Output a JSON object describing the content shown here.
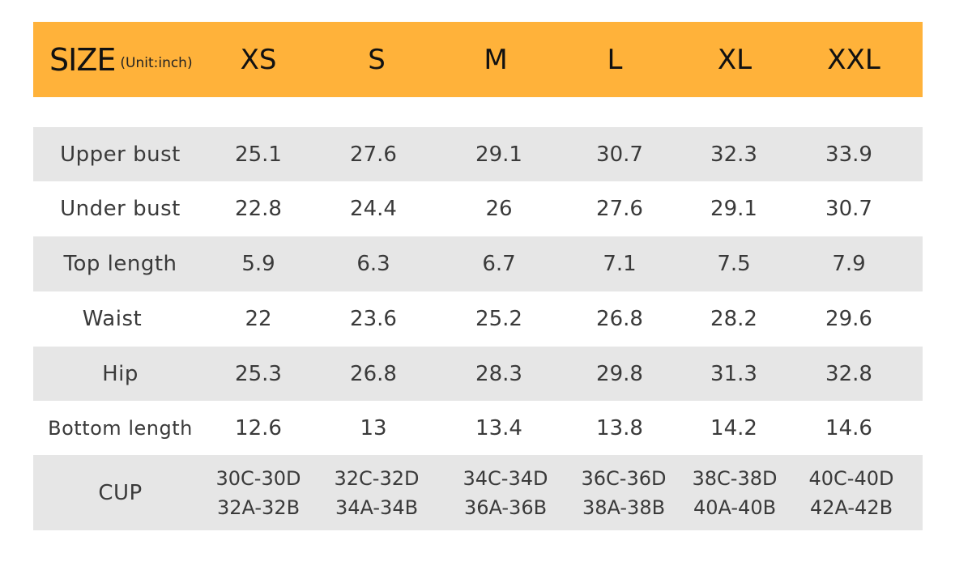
{
  "header": {
    "size_label": "SIZE",
    "unit_label": "(Unit:inch)",
    "sizes": [
      "XS",
      "S",
      "M",
      "L",
      "XL",
      "XXL"
    ]
  },
  "rows": [
    {
      "label": "Upper bust",
      "values": [
        "25.1",
        "27.6",
        "29.1",
        "30.7",
        "32.3",
        "33.9"
      ]
    },
    {
      "label": "Under bust",
      "values": [
        "22.8",
        "24.4",
        "26",
        "27.6",
        "29.1",
        "30.7"
      ]
    },
    {
      "label": "Top length",
      "values": [
        "5.9",
        "6.3",
        "6.7",
        "7.1",
        "7.5",
        "7.9"
      ]
    },
    {
      "label": "Waist",
      "values": [
        "22",
        "23.6",
        "25.2",
        "26.8",
        "28.2",
        "29.6"
      ]
    },
    {
      "label": "Hip",
      "values": [
        "25.3",
        "26.8",
        "28.3",
        "29.8",
        "31.3",
        "32.8"
      ]
    },
    {
      "label": "Bottom length",
      "values": [
        "12.6",
        "13",
        "13.4",
        "13.8",
        "14.2",
        "14.6"
      ]
    }
  ],
  "cup_row": {
    "label": "CUP",
    "values": [
      [
        "30C-30D",
        "32A-32B"
      ],
      [
        "32C-32D",
        "34A-34B"
      ],
      [
        "34C-34D",
        "36A-36B"
      ],
      [
        "36C-36D",
        "38A-38B"
      ],
      [
        "38C-38D",
        "40A-40B"
      ],
      [
        "40C-40D",
        "42A-42B"
      ]
    ]
  },
  "colors": {
    "header_bg": "#ffb23a",
    "shaded_row_bg": "#e6e6e6"
  }
}
